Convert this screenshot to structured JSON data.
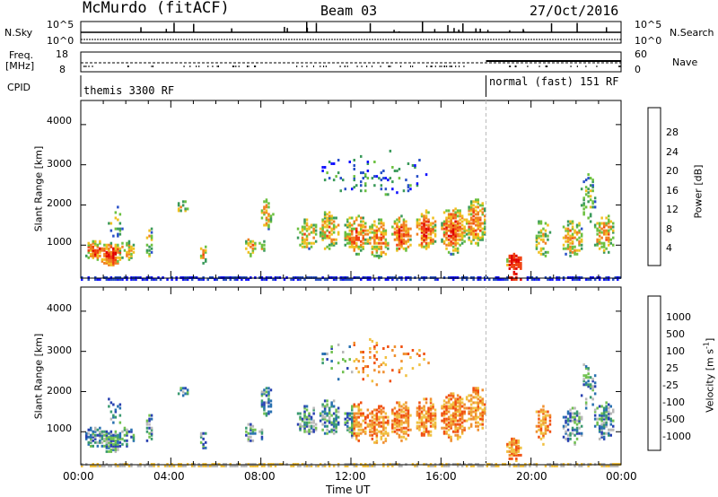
{
  "header": {
    "station": "McMurdo (fitACF)",
    "beam": "Beam 03",
    "date": "27/Oct/2016"
  },
  "nsky_panel": {
    "label_left": "N.Sky",
    "label_right": "N.Search",
    "left_ticks": [
      "10^5",
      "10^0"
    ],
    "right_ticks": [
      "10^5",
      "10^0"
    ]
  },
  "freq_panel": {
    "label_left_line1": "Freq.",
    "label_left_line2": "[MHz]",
    "label_right": "Nave",
    "left_ticks": [
      "18",
      "8"
    ],
    "right_ticks": [
      "60",
      "0"
    ]
  },
  "cpid": {
    "label": "CPID",
    "segments": [
      {
        "name": "themis 3300 RF",
        "start_hour": 0
      },
      {
        "name": "normal (fast) 151 RF",
        "start_hour": 18
      }
    ]
  },
  "chart_data": [
    {
      "type": "heatmap",
      "name": "power",
      "ylabel": "Slant Range [km]",
      "ylim": [
        180,
        4600
      ],
      "yticks": [
        "1000",
        "2000",
        "3000",
        "4000"
      ],
      "xlim_hours": [
        0,
        24
      ],
      "colorbar": {
        "label": "Power [dB]",
        "levels": [
          "4",
          "8",
          "12",
          "16",
          "20",
          "24",
          "28"
        ],
        "colors": [
          "#1010ff",
          "#2850c8",
          "#3a9a5a",
          "#6cc040",
          "#f0c020",
          "#f08020",
          "#f04010",
          "#e00000"
        ]
      }
    },
    {
      "type": "heatmap",
      "name": "velocity",
      "ylabel": "Slant Range [km]",
      "ylim": [
        180,
        4600
      ],
      "yticks": [
        "1000",
        "2000",
        "3000",
        "4000"
      ],
      "xlim_hours": [
        0,
        24
      ],
      "colorbar": {
        "label": "Velocity [m s",
        "label_sup": "-1",
        "label_end": "]",
        "levels": [
          "1000",
          "500",
          "100",
          "25",
          "-25",
          "-100",
          "-500",
          "-1000"
        ],
        "colors": [
          "#2840b0",
          "#2870b0",
          "#3a9a70",
          "#70c050",
          "#b8b8b8",
          "#f0c040",
          "#f09030",
          "#f05010",
          "#e00000"
        ]
      }
    }
  ],
  "xaxis": {
    "ticks": [
      "00:00",
      "04:00",
      "08:00",
      "12:00",
      "16:00",
      "20:00",
      "00:00"
    ],
    "label": "Time UT"
  }
}
